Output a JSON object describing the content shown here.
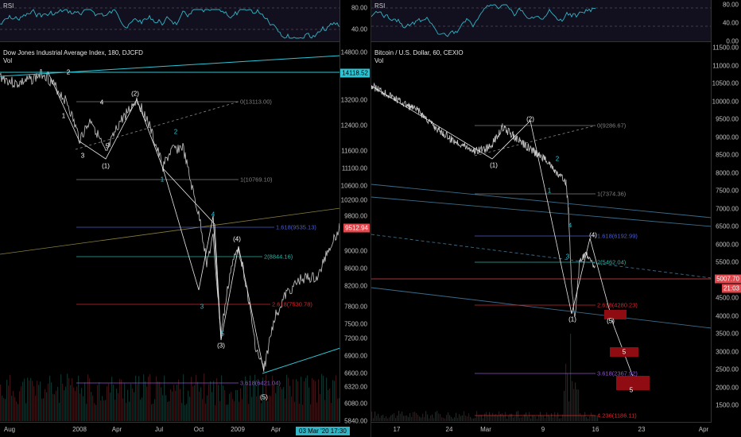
{
  "left": {
    "rsi_label": "RSI",
    "rsi_ticks": [
      "80.00",
      "40.00"
    ],
    "title": "Dow Jones Industrial Average Index, 180, DJCFD",
    "vol": "Vol",
    "y_ticks": [
      "14800.00",
      "14118.52",
      "13200.00",
      "12400.00",
      "11600.00",
      "11100.00",
      "10600.00",
      "10200.00",
      "9800.00",
      "9512.94",
      "9000.00",
      "8600.00",
      "8200.00",
      "7800.00",
      "7500.00",
      "7200.00",
      "6900.00",
      "6600.00",
      "6320.00",
      "6080.00",
      "5840.00"
    ],
    "x_ticks": [
      "Aug",
      "2008",
      "Apr",
      "Jul",
      "Oct",
      "2009",
      "Apr"
    ],
    "price_tag_high": "14118.52",
    "price_tag_last": "9512.94",
    "date_tag": "03 Mar '20  17:30",
    "fib_labels": [
      "0(13113.00)",
      "1(10769.10)",
      "1.618(9535.13)",
      "2(8844.16)",
      "2.618(7530.78)",
      "3.618(6421.04)"
    ],
    "waves": [
      "2",
      "1",
      "3",
      "4",
      "5",
      "(1)",
      "(2)",
      "1",
      "2",
      "3",
      "4",
      "5",
      "(3)",
      "(4)",
      "(5)"
    ]
  },
  "right": {
    "rsi_label": "RSI",
    "rsi_ticks": [
      "80.00",
      "40.00",
      "0.00"
    ],
    "title": "Bitcoin / U.S. Dollar, 60, CEXIO",
    "vol": "Vol",
    "y_ticks": [
      "11500.00",
      "11000.00",
      "10500.00",
      "10000.00",
      "9500.00",
      "9000.00",
      "8500.00",
      "8000.00",
      "7500.00",
      "7000.00",
      "6500.00",
      "6000.00",
      "5500.00",
      "5000.00",
      "4500.00",
      "4000.00",
      "3500.00",
      "3000.00",
      "2500.00",
      "2000.00",
      "1500.00"
    ],
    "x_ticks": [
      "17",
      "24",
      "Mar",
      "9",
      "16",
      "23",
      "Apr"
    ],
    "price_tag_last": "5007.70",
    "price_tag_time": "21:03",
    "fib_labels": [
      "0(9286.67)",
      "1(7374.36)",
      "1.618(6192.99)",
      "2(5462.04)",
      "2.618(4280.23)",
      "3.618(2367.92)",
      "4.236(1186.11)"
    ],
    "waves": [
      "(2)",
      "(1)",
      "1",
      "2",
      "3",
      "4",
      "(4)",
      "(1)",
      "(5)",
      "5",
      "5"
    ]
  },
  "colors": {
    "background": "#000000",
    "rsi_bg": "#120f1f",
    "rsi_line": "#2fb5c5",
    "price": "#c8c8c8",
    "cyan": "#2fc4d4",
    "red_level": "#e0464b",
    "fib_grey": "#808080",
    "fib_blue": "#4a5fd0",
    "fib_teal": "#2db3a6",
    "fib_red": "#d2282d",
    "fib_purple": "#8f56c9",
    "target_box": "#8f0d12"
  }
}
